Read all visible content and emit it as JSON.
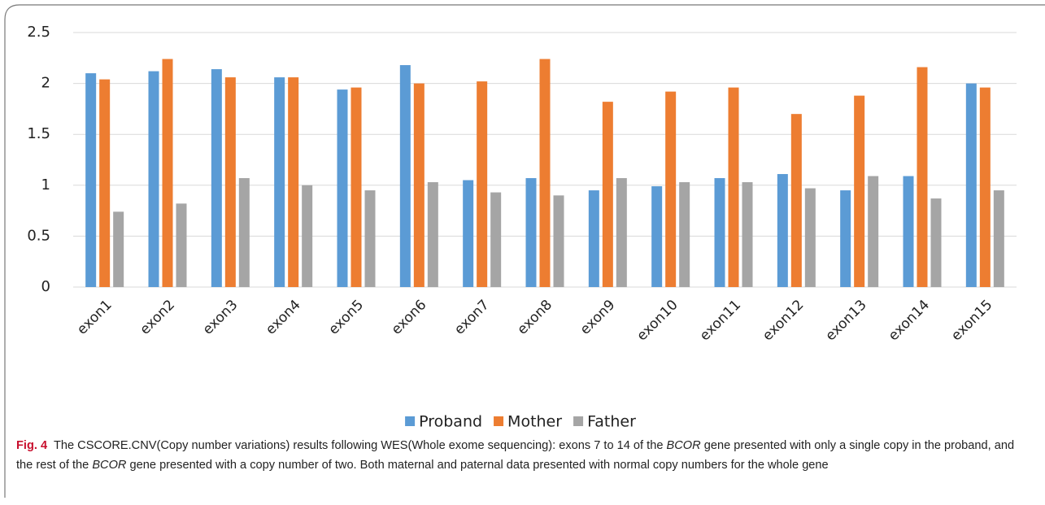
{
  "chart_data": {
    "type": "bar",
    "categories": [
      "exon1",
      "exon2",
      "exon3",
      "exon4",
      "exon5",
      "exon6",
      "exon7",
      "exon8",
      "exon9",
      "exon10",
      "exon11",
      "exon12",
      "exon13",
      "exon14",
      "exon15"
    ],
    "series": [
      {
        "name": "Proband",
        "color": "#5b9bd5",
        "values": [
          2.1,
          2.12,
          2.14,
          2.06,
          1.94,
          2.18,
          1.05,
          1.07,
          0.95,
          0.99,
          1.07,
          1.11,
          0.95,
          1.09,
          2.0
        ]
      },
      {
        "name": "Mother",
        "color": "#ed7d31",
        "values": [
          2.04,
          2.24,
          2.06,
          2.06,
          1.96,
          2.0,
          2.02,
          2.24,
          1.82,
          1.92,
          1.96,
          1.7,
          1.88,
          2.16,
          1.96
        ]
      },
      {
        "name": "Father",
        "color": "#a5a5a5",
        "values": [
          0.74,
          0.82,
          1.07,
          1.0,
          0.95,
          1.03,
          0.93,
          0.9,
          1.07,
          1.03,
          1.03,
          0.97,
          1.09,
          0.87,
          0.95
        ]
      }
    ],
    "ylim": [
      0,
      2.5
    ],
    "yticks": [
      0,
      0.5,
      1,
      1.5,
      2,
      2.5
    ],
    "grid": true,
    "legend": "bottom"
  },
  "caption": {
    "label": "Fig. 4",
    "parts": [
      "The CSCORE.CNV(Copy number variations) results following WES(Whole exome sequencing): exons 7 to 14 of the",
      "BCOR",
      "gene presented with only a single copy in the proband, and the rest of the",
      "BCOR",
      "gene presented with a copy number of two. Both maternal and paternal data presented with normal copy numbers for the whole gene"
    ]
  }
}
